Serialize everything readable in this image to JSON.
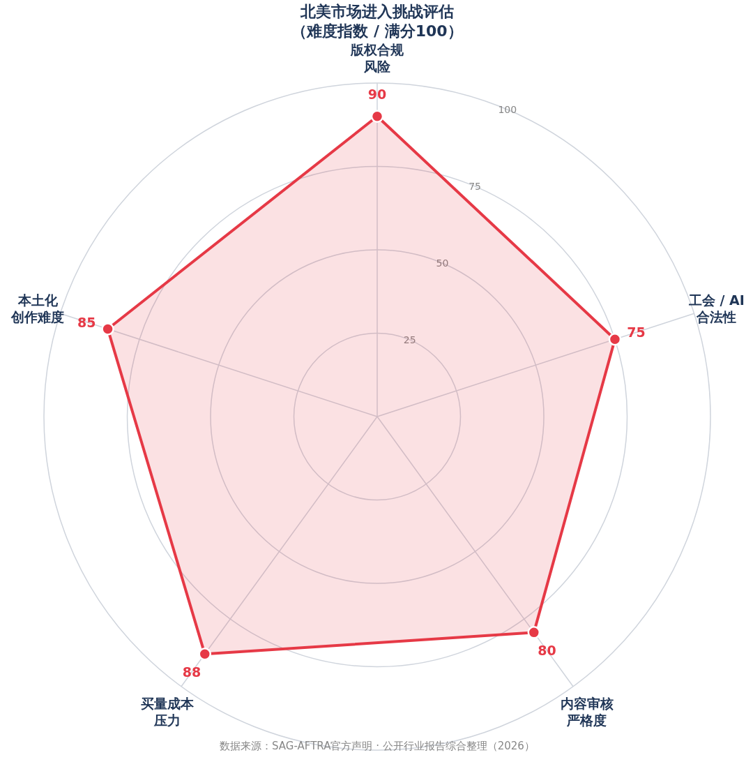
{
  "chart_data": {
    "type": "radar",
    "title": "北美市场进入挑战评估（难度指数 / 满分100）",
    "categories": [
      "版权合规风险",
      "工会 / AI合法性",
      "内容审核严格度",
      "买量成本压力",
      "本土化创作难度"
    ],
    "series": [
      {
        "color": "#e63946",
        "values": [
          90,
          75,
          80,
          88,
          85
        ]
      }
    ],
    "ylim": [
      0,
      100
    ],
    "yticks": [
      25,
      50,
      75,
      100
    ],
    "grid": true,
    "marker": "circle",
    "data_labels": true,
    "annotations": [
      "数据来源：SAG-AFTRA官方声明 · 公开行业报告综合整理（2026）"
    ]
  }
}
